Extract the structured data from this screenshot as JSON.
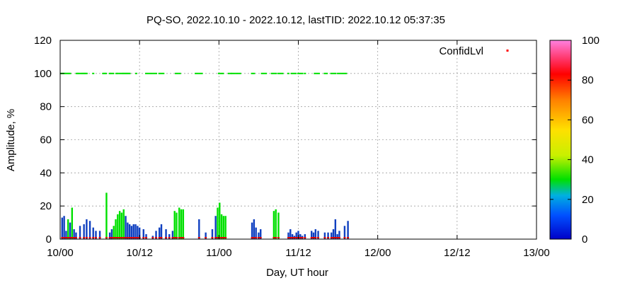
{
  "chart_data": {
    "type": "bar",
    "title": "PQ-SO, 2022.10.10 - 2022.10.12, lastTID: 2022.10.12 05:37:35",
    "xlabel": "Day, UT hour",
    "ylabel": "Amplitude, %",
    "xlim": [
      0,
      72
    ],
    "ylim": [
      0,
      120
    ],
    "x_ticks": [
      {
        "value": 0,
        "label": "10/00"
      },
      {
        "value": 12,
        "label": "10/12"
      },
      {
        "value": 24,
        "label": "11/00"
      },
      {
        "value": 36,
        "label": "11/12"
      },
      {
        "value": 48,
        "label": "12/00"
      },
      {
        "value": 60,
        "label": "12/12"
      },
      {
        "value": 72,
        "label": "13/00"
      }
    ],
    "y_ticks": [
      0,
      20,
      40,
      60,
      80,
      100,
      120
    ],
    "grid": true,
    "legend": {
      "label": "ConfidLvl",
      "placement": "top-right"
    },
    "colorbar": {
      "range": [
        0,
        100
      ],
      "ticks": [
        0,
        20,
        40,
        60,
        80,
        100
      ],
      "colors": [
        "#0000c8",
        "#00a0ff",
        "#00e000",
        "#e0e000",
        "#ffa000",
        "#ff0000",
        "#ff60e0"
      ]
    },
    "series": [
      {
        "kind": "amplitude",
        "x": [
          0.3,
          0.6,
          0.9,
          1.2,
          1.5,
          1.8,
          2.1,
          2.4,
          3.0,
          3.6,
          4.0,
          4.5,
          5.0,
          5.4,
          6.0,
          7.0,
          7.5,
          7.8,
          8.1,
          8.4,
          8.7,
          9.0,
          9.3,
          9.6,
          9.9,
          10.2,
          10.5,
          10.8,
          11.1,
          11.4,
          11.7,
          12.0,
          12.6,
          13.0,
          14.0,
          14.5,
          15.0,
          15.3,
          16.0,
          16.5,
          17.0,
          17.3,
          17.6,
          18.0,
          18.3,
          18.6,
          21.0,
          22.0,
          23.0,
          23.5,
          23.8,
          24.1,
          24.4,
          24.7,
          25.0,
          29.0,
          29.3,
          29.6,
          30.0,
          30.3,
          32.3,
          32.6,
          33.0,
          34.5,
          34.8,
          35.1,
          35.4,
          35.7,
          36.0,
          36.3,
          36.6,
          37.0,
          38.0,
          38.3,
          38.6,
          39.0,
          40.0,
          40.5,
          41.0,
          41.3,
          41.6,
          41.9,
          42.2,
          43.0,
          43.5
        ],
        "values": [
          13,
          14,
          5,
          12,
          10,
          19,
          6,
          4,
          8,
          9,
          12,
          11,
          7,
          5,
          5,
          28,
          4,
          6,
          8,
          12,
          15,
          17,
          16,
          18,
          14,
          10,
          9,
          8,
          9,
          9,
          8,
          7,
          6,
          3,
          2,
          5,
          7,
          9,
          6,
          3,
          5,
          17,
          16,
          19,
          18,
          18,
          12,
          4,
          6,
          14,
          19,
          22,
          15,
          14,
          14,
          10,
          12,
          7,
          4,
          6,
          17,
          18,
          16,
          4,
          6,
          3,
          2,
          4,
          5,
          3,
          2,
          3,
          5,
          4,
          6,
          5,
          4,
          4,
          4,
          6,
          12,
          3,
          5,
          8,
          11
        ],
        "confid": [
          5,
          5,
          5,
          20,
          5,
          20,
          5,
          5,
          5,
          5,
          5,
          5,
          5,
          5,
          5,
          20,
          5,
          5,
          20,
          20,
          20,
          20,
          20,
          20,
          5,
          5,
          5,
          5,
          5,
          5,
          5,
          5,
          5,
          5,
          5,
          5,
          5,
          5,
          5,
          5,
          5,
          20,
          20,
          20,
          20,
          20,
          5,
          5,
          5,
          5,
          20,
          20,
          20,
          20,
          20,
          5,
          5,
          5,
          5,
          5,
          20,
          20,
          20,
          5,
          5,
          5,
          5,
          5,
          5,
          5,
          5,
          5,
          5,
          5,
          5,
          5,
          5,
          5,
          5,
          5,
          5,
          5,
          5,
          5,
          5
        ]
      },
      {
        "kind": "confid_points",
        "x": [
          0.1,
          0.3,
          0.5,
          0.7,
          0.9,
          1.1,
          1.3,
          1.5,
          2.5,
          2.7,
          2.9,
          3.2,
          3.4,
          3.6,
          3.8,
          4.0,
          5.0,
          6.5,
          6.7,
          6.9,
          7.5,
          7.7,
          8.0,
          8.5,
          8.7,
          9.0,
          9.3,
          9.5,
          9.7,
          9.9,
          10.1,
          10.3,
          10.5,
          11.5,
          13.0,
          13.3,
          13.6,
          13.9,
          14.2,
          14.5,
          15.0,
          15.3,
          15.6,
          17.5,
          17.8,
          18.1,
          20.5,
          20.8,
          21.1,
          21.4,
          24.0,
          24.3,
          24.6,
          25.5,
          25.8,
          26.0,
          26.3,
          26.6,
          26.9,
          27.2,
          29.0,
          29.3,
          30.5,
          30.8,
          31.1,
          32.0,
          32.3,
          32.6,
          33.0,
          33.3,
          33.6,
          34.5,
          35.0,
          35.3,
          35.6,
          36.0,
          36.3,
          36.6,
          37.0,
          38.5,
          38.8,
          39.1,
          40.0,
          40.3,
          41.0,
          41.3,
          41.6,
          42.0,
          42.3,
          42.6,
          42.9,
          43.2
        ],
        "values": [
          100,
          100,
          100,
          100,
          100,
          100,
          100,
          100,
          100,
          100,
          100,
          100,
          100,
          100,
          100,
          100,
          100,
          100,
          100,
          100,
          100,
          100,
          100,
          100,
          100,
          100,
          100,
          100,
          100,
          100,
          100,
          100,
          100,
          100,
          100,
          100,
          100,
          100,
          100,
          100,
          100,
          100,
          100,
          100,
          100,
          100,
          100,
          100,
          100,
          100,
          100,
          100,
          100,
          100,
          100,
          100,
          100,
          100,
          100,
          100,
          100,
          100,
          100,
          100,
          100,
          100,
          100,
          100,
          100,
          100,
          100,
          100,
          100,
          100,
          100,
          100,
          100,
          100,
          100,
          100,
          100,
          100,
          100,
          100,
          100,
          100,
          100,
          100,
          100,
          100,
          100,
          100
        ]
      }
    ]
  }
}
